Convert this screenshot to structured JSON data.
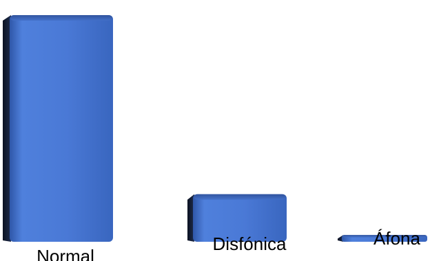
{
  "chart_data": {
    "type": "bar",
    "style": "3d",
    "categories": [
      "Normal",
      "Disfónica",
      "Áfona"
    ],
    "values": [
      100,
      21,
      3
    ],
    "title": "",
    "xlabel": "",
    "ylabel": "",
    "ylim": [
      0,
      100
    ],
    "grid": false,
    "legend": "none",
    "colors": {
      "bar_front": "#4A79D6",
      "bar_top": "#3A63B8",
      "bar_side": "#151E33",
      "label": "#000000"
    }
  }
}
